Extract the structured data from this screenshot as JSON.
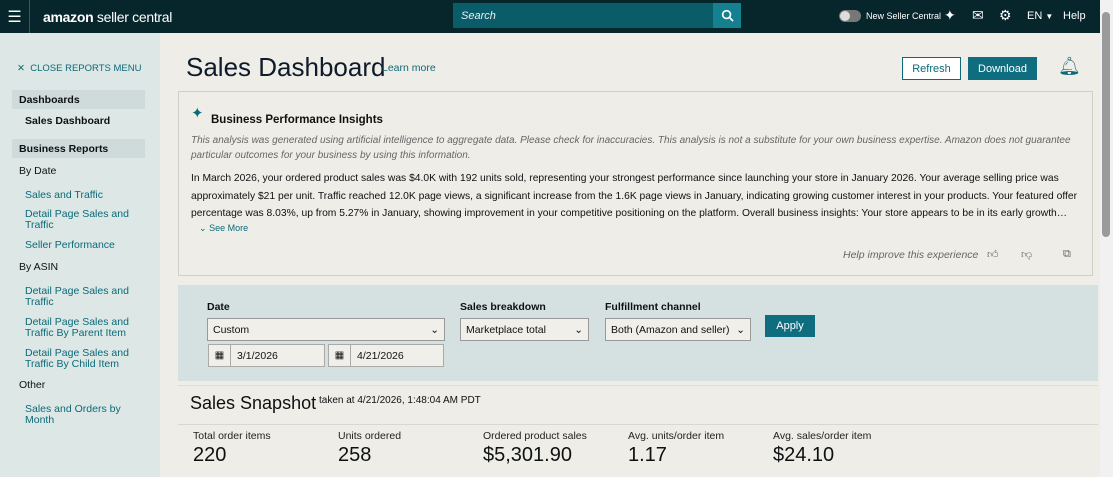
{
  "topbar": {
    "logo_brand": "amazon",
    "logo_suffix": " seller central",
    "search_placeholder": "Search",
    "toggle_label": "New Seller Central",
    "language": "EN",
    "help": "Help"
  },
  "sidebar": {
    "close_label": "CLOSE REPORTS MENU",
    "dashboards": "Dashboards",
    "sales_dashboard": "Sales Dashboard",
    "business_reports": "Business Reports",
    "by_date": "By Date",
    "by_date_items": [
      "Sales and Traffic",
      "Detail Page Sales and Traffic",
      "Seller Performance"
    ],
    "by_asin": "By ASIN",
    "by_asin_items": [
      "Detail Page Sales and Traffic",
      "Detail Page Sales and Traffic By Parent Item",
      "Detail Page Sales and Traffic By Child Item"
    ],
    "other": "Other",
    "other_items": [
      "Sales and Orders by Month"
    ]
  },
  "header": {
    "title": "Sales Dashboard",
    "learn_more": "Learn more",
    "refresh": "Refresh",
    "download": "Download"
  },
  "insights": {
    "title": "Business Performance Insights",
    "disclaimer": "This analysis was generated using artificial intelligence to aggregate data. Please check for inaccuracies. This analysis is not a substitute for your own business expertise. Amazon does not guarantee particular outcomes for your business by using this information.",
    "body": "In March 2026, your ordered product sales was $4.0K with 192 units sold, representing your strongest performance since launching your store in January 2026. Your average selling price was approximately $21 per unit. Traffic reached 12.0K page views, a significant increase from the 1.6K page views in January, indicating growing customer interest in your products. Your featured offer percentage was 8.03%, up from 5.27% in January, showing improvement in your competitive positioning on the platform. Overall business insights: Your store appears to be in its early growth…",
    "see_more": "See More",
    "help_improve": "Help improve this experience"
  },
  "filters": {
    "date_label": "Date",
    "date_value": "Custom",
    "start_date": "3/1/2026",
    "end_date": "4/21/2026",
    "breakdown_label": "Sales breakdown",
    "breakdown_value": "Marketplace total",
    "channel_label": "Fulfillment channel",
    "channel_value": "Both (Amazon and seller)",
    "apply": "Apply"
  },
  "snapshot": {
    "title": "Sales Snapshot",
    "taken": "taken at 4/21/2026, 1:48:04 AM PDT",
    "metrics": [
      {
        "label": "Total order items",
        "value": "220"
      },
      {
        "label": "Units ordered",
        "value": "258"
      },
      {
        "label": "Ordered product sales",
        "value": "$5,301.90"
      },
      {
        "label": "Avg. units/order item",
        "value": "1.17"
      },
      {
        "label": "Avg. sales/order item",
        "value": "$24.10"
      }
    ]
  }
}
